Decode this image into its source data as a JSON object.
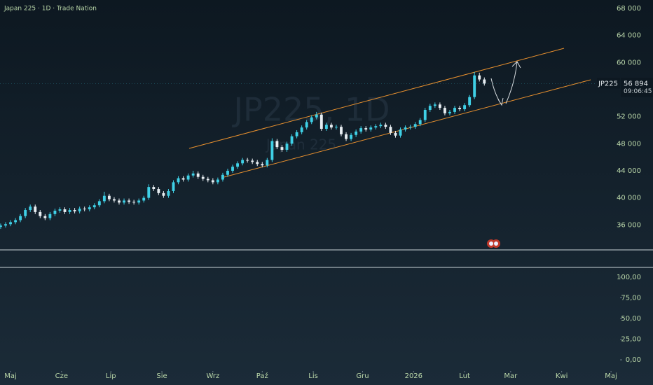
{
  "chart_data": [
    {
      "type": "candlestick",
      "title": "Japan 225 · 1D · Trade Nation",
      "watermark": "JP225, 1D",
      "watermark_sub": "Japan 225",
      "symbol": "JP225",
      "last_label": "56 894",
      "countdown": "09:06:45",
      "up_color": "#3fd0e6",
      "down_color": "#e8eef2",
      "x": [
        -6,
        -3,
        0,
        3,
        6,
        9,
        12,
        15,
        18,
        21,
        24,
        27,
        30,
        33,
        36,
        39,
        42,
        45,
        48,
        51,
        54,
        57,
        60,
        63,
        66,
        69,
        72,
        75,
        78,
        81,
        84,
        87,
        90,
        93,
        96,
        99,
        102,
        105,
        108,
        111,
        114,
        117,
        120,
        123,
        126,
        129,
        132,
        135,
        138,
        141,
        144,
        147,
        150,
        153,
        156,
        159,
        162,
        165,
        168,
        171,
        174,
        177,
        180,
        183,
        186,
        189,
        192,
        195,
        198,
        201,
        204,
        207,
        210,
        213,
        216,
        219,
        222,
        225,
        228,
        231,
        234,
        237,
        240,
        243,
        246,
        249,
        252,
        255,
        258,
        261,
        264,
        267,
        270,
        273,
        276,
        279,
        282,
        285,
        288
      ],
      "open": [
        35700,
        35900,
        36100,
        36400,
        36700,
        37300,
        38200,
        38700,
        37900,
        37300,
        37000,
        37600,
        38100,
        38300,
        37900,
        38200,
        38000,
        38400,
        38300,
        38600,
        38900,
        39500,
        40300,
        39800,
        39600,
        39300,
        39600,
        39400,
        39300,
        39600,
        40000,
        41600,
        41300,
        40700,
        40300,
        41000,
        42300,
        42900,
        42700,
        43300,
        43600,
        43100,
        42800,
        42600,
        42300,
        42700,
        43400,
        44000,
        44600,
        45100,
        45600,
        45500,
        45300,
        45000,
        44800,
        45600,
        48400,
        47500,
        47100,
        48000,
        49100,
        49700,
        50400,
        51200,
        51900,
        52300,
        50200,
        50800,
        50400,
        50500,
        49400,
        48700,
        49300,
        49800,
        50300,
        50100,
        50400,
        50600,
        50800,
        50500,
        49600,
        49200,
        50100,
        50400,
        50500,
        50900,
        51500,
        53000,
        53600,
        53800,
        53300,
        52500,
        52700,
        53300,
        53100,
        53700,
        54900,
        58100,
        57500
      ],
      "high": [
        36200,
        36400,
        36700,
        37000,
        37600,
        38500,
        39000,
        39000,
        38200,
        37600,
        37900,
        38400,
        38600,
        38600,
        38500,
        38500,
        38700,
        38700,
        38900,
        39200,
        39800,
        40900,
        40600,
        40100,
        39900,
        39900,
        39900,
        39700,
        39900,
        40300,
        42000,
        41900,
        41600,
        41000,
        41300,
        42600,
        43200,
        43200,
        43600,
        44000,
        43900,
        43400,
        43100,
        42900,
        43000,
        43700,
        44300,
        44900,
        45400,
        45900,
        45900,
        45800,
        45600,
        45300,
        45900,
        48800,
        48700,
        47800,
        48300,
        49400,
        50000,
        50700,
        51500,
        52200,
        52700,
        52600,
        51100,
        51100,
        50800,
        50800,
        49700,
        49600,
        50100,
        50600,
        50600,
        50700,
        50900,
        51100,
        51100,
        50800,
        49900,
        50400,
        50700,
        50800,
        51200,
        51800,
        53300,
        53900,
        54100,
        54100,
        53600,
        53000,
        53600,
        53600,
        54000,
        55200,
        58600,
        58500,
        57800
      ],
      "low": [
        35400,
        35600,
        35800,
        36100,
        36400,
        37000,
        37900,
        37600,
        37000,
        36700,
        36700,
        37300,
        37800,
        37600,
        37600,
        37700,
        37700,
        38000,
        38000,
        38300,
        38600,
        39200,
        39500,
        39300,
        39000,
        39000,
        39100,
        39000,
        39000,
        39300,
        39700,
        41000,
        40400,
        40000,
        40000,
        40700,
        42000,
        42400,
        42400,
        43000,
        42800,
        42500,
        42300,
        42000,
        42000,
        42400,
        43100,
        43700,
        44300,
        44800,
        45200,
        45000,
        44700,
        44500,
        44500,
        45300,
        47200,
        46800,
        46800,
        47700,
        48800,
        49400,
        50100,
        50900,
        51600,
        49900,
        49900,
        50100,
        50100,
        49100,
        48400,
        48400,
        49000,
        49500,
        49800,
        49800,
        50100,
        50300,
        50200,
        49300,
        48900,
        48900,
        49800,
        50100,
        50200,
        50600,
        51200,
        52700,
        53300,
        53000,
        52200,
        52200,
        52400,
        52800,
        52800,
        53400,
        54600,
        57200,
        56600
      ],
      "close": [
        35900,
        36100,
        36400,
        36700,
        37300,
        38200,
        38700,
        37900,
        37300,
        37000,
        37600,
        38100,
        38300,
        37900,
        38200,
        38000,
        38400,
        38300,
        38600,
        38900,
        39500,
        40300,
        39800,
        39600,
        39300,
        39600,
        39400,
        39300,
        39600,
        40000,
        41600,
        41300,
        40700,
        40300,
        41000,
        42300,
        42900,
        42700,
        43300,
        43600,
        43100,
        42800,
        42600,
        42300,
        42700,
        43400,
        44000,
        44600,
        45100,
        45600,
        45500,
        45300,
        45000,
        44800,
        45600,
        48400,
        47500,
        47100,
        48000,
        49100,
        49700,
        50400,
        51200,
        51900,
        52300,
        50200,
        50800,
        50400,
        50500,
        49400,
        48700,
        49300,
        49800,
        50300,
        50100,
        50400,
        50600,
        50800,
        50500,
        49600,
        49200,
        50100,
        50400,
        50500,
        50900,
        51500,
        53000,
        53600,
        53800,
        53300,
        52500,
        52700,
        53300,
        53100,
        53700,
        54900,
        58100,
        57500,
        56894
      ],
      "xlim": [
        -6.4,
        370.5
      ],
      "xticks": [
        {
          "value": 0,
          "label": "Maj"
        },
        {
          "value": 31,
          "label": "Cze"
        },
        {
          "value": 61,
          "label": "Lip"
        },
        {
          "value": 92,
          "label": "Sie"
        },
        {
          "value": 123,
          "label": "Wrz"
        },
        {
          "value": 153,
          "label": "Paź"
        },
        {
          "value": 184,
          "label": "Lis"
        },
        {
          "value": 214,
          "label": "Gru"
        },
        {
          "value": 245,
          "label": "2026"
        },
        {
          "value": 276,
          "label": "Lut"
        },
        {
          "value": 304,
          "label": "Mar"
        },
        {
          "value": 335,
          "label": "Kwi"
        },
        {
          "value": 365,
          "label": "Maj"
        }
      ],
      "ylim": [
        32300,
        69250
      ],
      "yticks": [
        {
          "value": 36000,
          "label": "36 000"
        },
        {
          "value": 40000,
          "label": "40 000"
        },
        {
          "value": 44000,
          "label": "44 000"
        },
        {
          "value": 48000,
          "label": "48 000"
        },
        {
          "value": 52000,
          "label": "52 000"
        },
        {
          "value": 60000,
          "label": "60 000"
        },
        {
          "value": 64000,
          "label": "64 000"
        },
        {
          "value": 68000,
          "label": "68 000"
        }
      ]
    },
    {
      "type": "line",
      "ylim": [
        -11,
        111
      ],
      "yticks": [
        {
          "value": 0,
          "label": "0,00"
        },
        {
          "value": 25,
          "label": "25,00"
        },
        {
          "value": 50,
          "label": "50,00"
        },
        {
          "value": 75,
          "label": "75,00"
        },
        {
          "value": 100,
          "label": "100,00"
        }
      ]
    }
  ]
}
